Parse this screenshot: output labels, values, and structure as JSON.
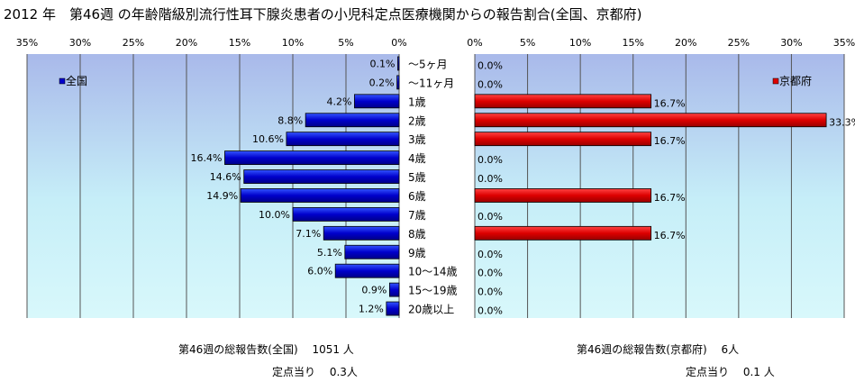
{
  "title": "2012 年　第46週 の年齢階級別流行性耳下腺炎患者の小児科定点医療機関からの報告割合(全国、京都府)",
  "chart_data": {
    "type": "bar",
    "orientation": "horizontal",
    "categories": [
      "～5ヶ月",
      "～11ヶ月",
      "1歳",
      "2歳",
      "3歳",
      "4歳",
      "5歳",
      "6歳",
      "7歳",
      "8歳",
      "9歳",
      "10～14歳",
      "15～19歳",
      "20歳以上"
    ],
    "series": [
      {
        "name": "全国",
        "color": "#0000cc",
        "direction": "left",
        "values": [
          0.1,
          0.2,
          4.2,
          8.8,
          10.6,
          16.4,
          14.6,
          14.9,
          10.0,
          7.1,
          5.1,
          6.0,
          0.9,
          1.2
        ],
        "labels": [
          "0.1%",
          "0.2%",
          "4.2%",
          "8.8%",
          "10.6%",
          "16.4%",
          "14.6%",
          "14.9%",
          "10.0%",
          "7.1%",
          "5.1%",
          "6.0%",
          "0.9%",
          "1.2%"
        ]
      },
      {
        "name": "京都府",
        "color": "#dd0000",
        "direction": "right",
        "values": [
          0,
          0,
          16.7,
          33.3,
          16.7,
          0,
          0,
          16.7,
          0,
          16.7,
          0,
          0,
          0,
          0
        ],
        "labels": [
          "0.0%",
          "0.0%",
          "16.7%",
          "33.3%",
          "16.7%",
          "0.0%",
          "0.0%",
          "16.7%",
          "0.0%",
          "16.7%",
          "0.0%",
          "0.0%",
          "0.0%",
          "0.0%"
        ]
      }
    ],
    "xlim": [
      0,
      35
    ],
    "ticks": [
      "0%",
      "5%",
      "10%",
      "15%",
      "20%",
      "25%",
      "30%",
      "35%"
    ],
    "grid": true,
    "legend_left": "全国",
    "legend_right": "京都府"
  },
  "footer": {
    "left_total": "第46週の総報告数(全国)　 1051 人",
    "left_per": "定点当り　 0.3人",
    "right_total": "第46週の総報告数(京都府)　 6人",
    "right_per": "定点当り　 0.1 人"
  }
}
